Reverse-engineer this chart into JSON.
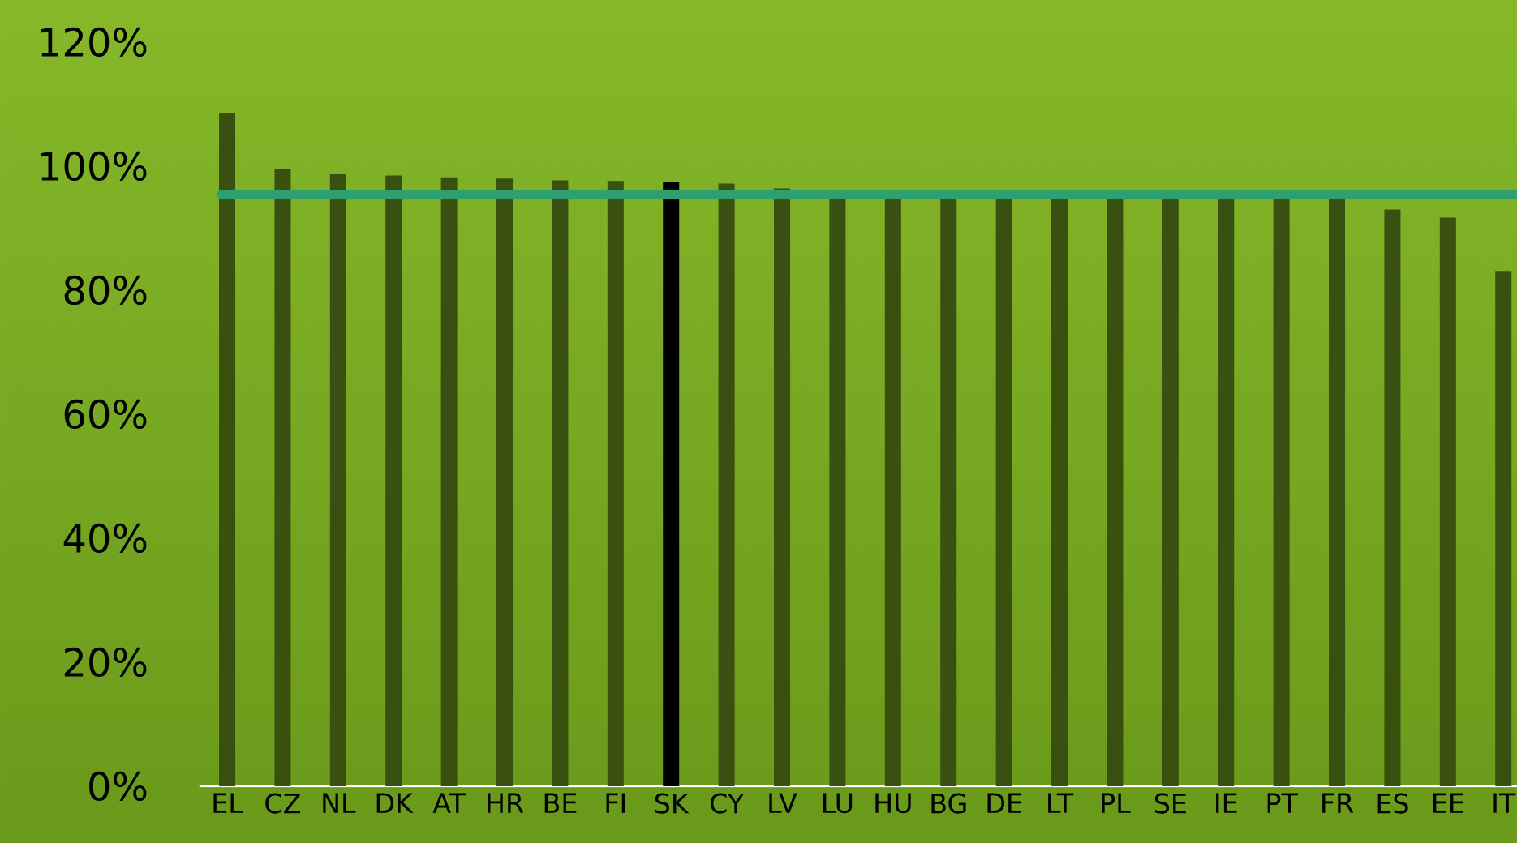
{
  "chart_data": {
    "type": "bar",
    "categories": [
      "EL",
      "CZ",
      "NL",
      "DK",
      "AT",
      "HR",
      "BE",
      "FI",
      "SK",
      "CY",
      "LV",
      "LU",
      "HU",
      "BG",
      "DE",
      "LT",
      "PL",
      "SE",
      "IE",
      "PT",
      "FR",
      "ES",
      "EE",
      "IT"
    ],
    "values": [
      108.5,
      99.6,
      98.7,
      98.5,
      98.2,
      98.0,
      97.7,
      97.6,
      97.4,
      97.2,
      96.4,
      95.5,
      95.5,
      95.5,
      95.5,
      95.5,
      95.5,
      95.5,
      95.5,
      95.5,
      95.5,
      93.0,
      91.7,
      83.1
    ],
    "colors": [
      "#3a5010",
      "#3a5010",
      "#3a5010",
      "#3a5010",
      "#3a5010",
      "#3a5010",
      "#3a5010",
      "#3a5010",
      "#000000",
      "#3a5010",
      "#3a5010",
      "#3a5010",
      "#3a5010",
      "#3a5010",
      "#3a5010",
      "#3a5010",
      "#3a5010",
      "#3a5010",
      "#3a5010",
      "#3a5010",
      "#3a5010",
      "#3a5010",
      "#3a5010",
      "#3a5010"
    ],
    "ylim": [
      0,
      120
    ],
    "yticks": [
      {
        "value": 0,
        "label": "0%"
      },
      {
        "value": 20,
        "label": "20%"
      },
      {
        "value": 40,
        "label": "40%"
      },
      {
        "value": 60,
        "label": "60%"
      },
      {
        "value": 80,
        "label": "80%"
      },
      {
        "value": 100,
        "label": "100%"
      },
      {
        "value": 120,
        "label": "120%"
      }
    ],
    "ref_lines": [
      {
        "axis": "y",
        "value": 95.4,
        "color": "#2ea070"
      }
    ],
    "grid": false
  }
}
